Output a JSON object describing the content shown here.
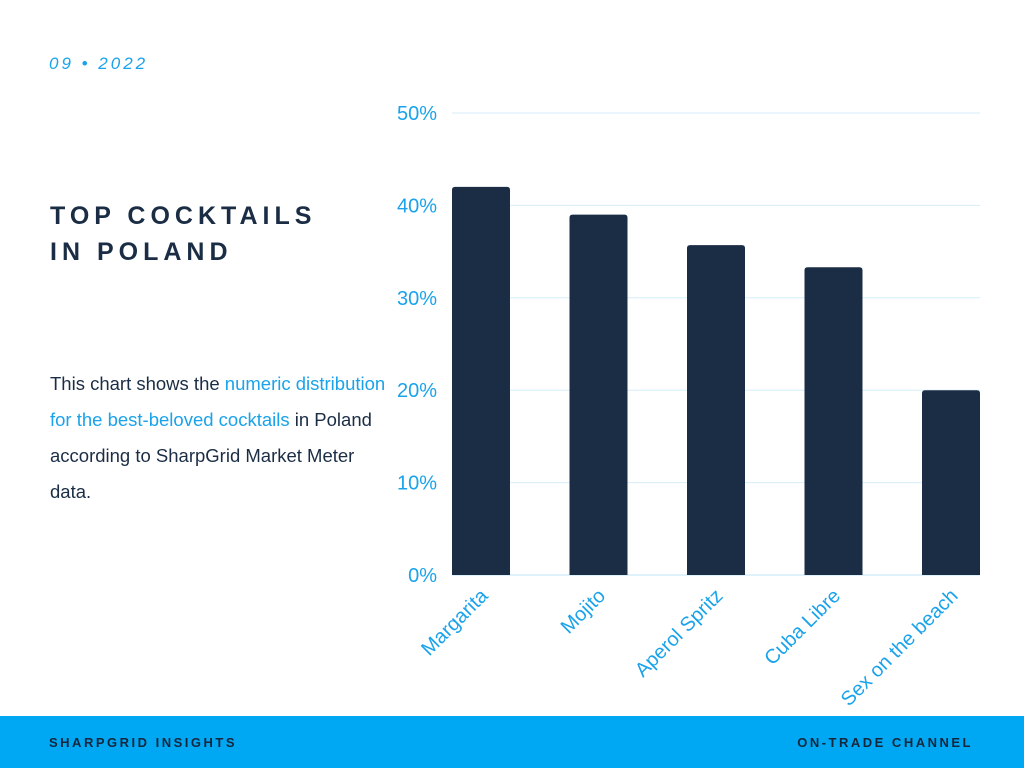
{
  "header": {
    "date": "09 • 2022"
  },
  "title": {
    "line1": "TOP COCKTAILS",
    "line2": "IN POLAND"
  },
  "description": {
    "part1": "This chart shows the ",
    "highlight": "numeric distribution for the best-beloved cocktails",
    "part2": " in Poland according to SharpGrid Market Meter data."
  },
  "footer": {
    "left": "SHARPGRID INSIGHTS",
    "right": "ON-TRADE CHANNEL"
  },
  "colors": {
    "bar": "#1b2d45",
    "accent": "#1aa3ea",
    "grid": "#d6eef9",
    "footer": "#00a8f3"
  },
  "chart_data": {
    "type": "bar",
    "categories": [
      "Margarita",
      "Mojito",
      "Aperol Spritz",
      "Cuba Libre",
      "Sex on the beach"
    ],
    "values": [
      42,
      39,
      35.7,
      33.3,
      20
    ],
    "title": "",
    "xlabel": "",
    "ylabel": "",
    "ylim": [
      0,
      50
    ],
    "yticks": [
      "0%",
      "10%",
      "20%",
      "30%",
      "40%",
      "50%"
    ],
    "grid": true
  }
}
